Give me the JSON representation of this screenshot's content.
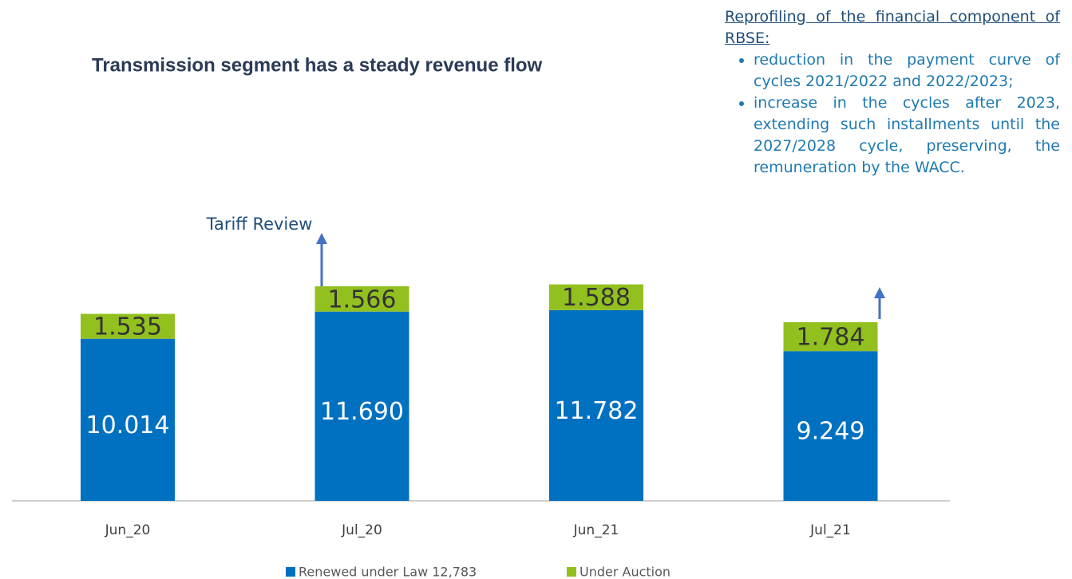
{
  "chart_data": {
    "type": "stacked_bar",
    "title": "Transmission segment has a steady revenue flow",
    "annotation": "Tariff Review",
    "categories": [
      "Jun_20",
      "Jul_20",
      "Jun_21",
      "Jul_21"
    ],
    "series": [
      {
        "name": "Renewed under Law 12,783",
        "color": "#0070c0",
        "values": [
          10.014,
          11.69,
          11.782,
          9.249
        ],
        "value_labels": [
          "10.014",
          "11.690",
          "11.782",
          "9.249"
        ]
      },
      {
        "name": "Under Auction",
        "color": "#92c01f",
        "values": [
          1.535,
          1.566,
          1.588,
          1.784
        ],
        "value_labels": [
          "1.535",
          "1.566",
          "1.588",
          "1.784"
        ]
      }
    ]
  },
  "notes": {
    "heading": "Reprofiling of the financial component of RBSE:",
    "bullets": [
      "reduction in the payment curve of cycles 2021/2022 and 2022/2023;",
      "increase in the cycles after 2023, extending such installments until the 2027/2028 cycle, preserving, the remuneration by the WACC."
    ]
  }
}
